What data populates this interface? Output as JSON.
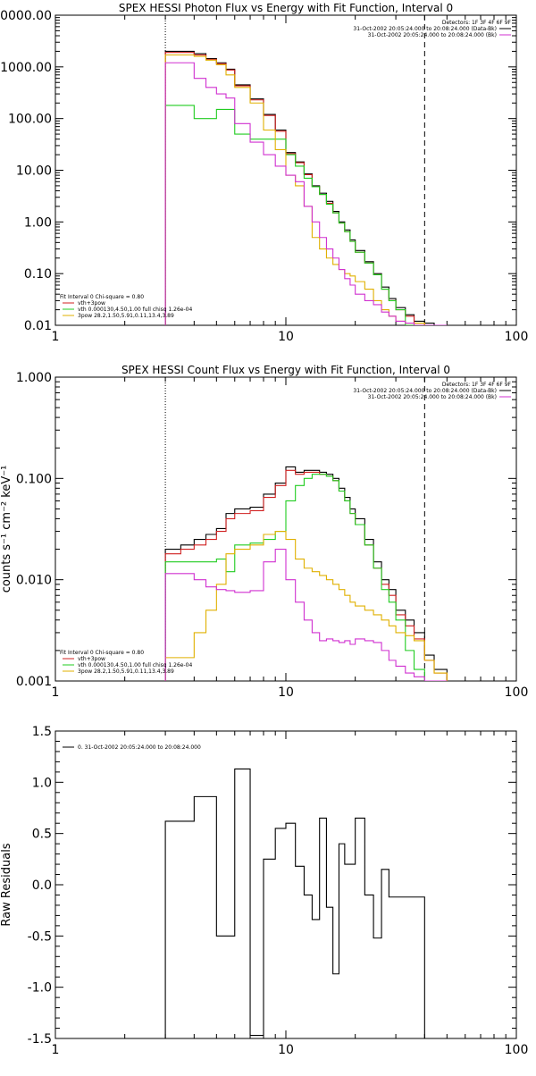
{
  "chart_data": [
    {
      "type": "line",
      "step": true,
      "title": "SPEX HESSI Photon Flux vs Energy with Fit Function, Interval 0",
      "xscale": "log",
      "yscale": "log",
      "xlim": [
        1,
        100
      ],
      "ylim": [
        0.01,
        10000
      ],
      "xticks": [
        {
          "v": 1,
          "label": "1"
        },
        {
          "v": 10,
          "label": "10"
        },
        {
          "v": 100,
          "label": "100"
        }
      ],
      "yticks": [
        {
          "v": 0.01,
          "label": "0.01"
        },
        {
          "v": 0.1,
          "label": "0.10"
        },
        {
          "v": 1,
          "label": "1.00"
        },
        {
          "v": 10,
          "label": "10.00"
        },
        {
          "v": 100,
          "label": "100.00"
        },
        {
          "v": 1000,
          "label": "1000.00"
        },
        {
          "v": 10000,
          "label": "10000.00"
        }
      ],
      "vlines": [
        {
          "x": 3,
          "style": "dotted"
        },
        {
          "x": 40,
          "style": "dashed"
        }
      ],
      "edges": [
        3,
        3.5,
        4,
        4.5,
        5,
        5.5,
        6,
        7,
        8,
        9,
        10,
        11,
        12,
        13,
        14,
        15,
        16,
        17,
        18,
        19,
        20,
        22,
        24,
        26,
        28,
        30,
        33,
        36,
        40,
        44,
        50
      ],
      "series": [
        {
          "color": "#000000",
          "values": [
            2000,
            2000,
            1800,
            1450,
            1200,
            900,
            450,
            240,
            120,
            60,
            22,
            14.5,
            8.5,
            5,
            3.6,
            2.5,
            1.6,
            1.0,
            0.7,
            0.45,
            0.28,
            0.17,
            0.1,
            0.055,
            0.033,
            0.022,
            0.016,
            0.012,
            0.011,
            0.01
          ]
        },
        {
          "color": "#d02020",
          "values": [
            1900,
            1900,
            1700,
            1400,
            1150,
            870,
            430,
            230,
            115,
            57,
            21,
            14,
            8.2,
            4.8,
            3.4,
            2.3,
            1.5,
            0.95,
            0.65,
            0.42,
            0.26,
            0.16,
            0.095,
            0.05,
            0.03,
            0.02,
            0.015,
            0.011,
            0.01,
            0.01
          ]
        },
        {
          "color": "#20cc20",
          "values": [
            180,
            180,
            100,
            100,
            150,
            150,
            50,
            40,
            40,
            40,
            20,
            12,
            7,
            4.8,
            3.4,
            2.2,
            1.5,
            0.95,
            0.65,
            0.42,
            0.26,
            0.16,
            0.095,
            0.05,
            0.03,
            0.02,
            0.01,
            0.01,
            0.01,
            0.01
          ]
        },
        {
          "color": "#e0b000",
          "values": [
            1700,
            1700,
            1600,
            1350,
            1100,
            700,
            400,
            200,
            60,
            25,
            8,
            5,
            2.0,
            0.5,
            0.3,
            0.2,
            0.15,
            0.12,
            0.1,
            0.09,
            0.07,
            0.05,
            0.03,
            0.02,
            0.015,
            0.012,
            0.011,
            0.011,
            0.01,
            0.01
          ]
        },
        {
          "color": "#d030d0",
          "values": [
            1200,
            1200,
            600,
            400,
            300,
            250,
            80,
            35,
            20,
            12,
            8,
            6,
            2.0,
            1.0,
            0.5,
            0.3,
            0.2,
            0.12,
            0.08,
            0.06,
            0.04,
            0.03,
            0.025,
            0.018,
            0.015,
            0.012,
            0.011,
            0.01,
            0.01,
            0.01
          ]
        }
      ],
      "legend_right": {
        "placement": "top-right",
        "lines": [
          {
            "text": "Detectors: 1F 3F 4F 6F 9F",
            "color": null
          },
          {
            "text": "31-Oct-2002 20:05:24.000 to 20:08:24.000 (Data-Bk)",
            "color": "#000000"
          },
          {
            "text": "31-Oct-2002 20:05:24.000 to 20:08:24.000 (Bk)",
            "color": "#d030d0"
          }
        ]
      },
      "legend_left": {
        "placement": "bottom-left",
        "lines": [
          {
            "text": "Fit Interval 0   Chi-square = 0.80",
            "color": null
          },
          {
            "text": "vth+3pow",
            "color": "#d02020"
          },
          {
            "text": "vth 0.000130,4.50,1.00   full chisq 1.26e-04",
            "color": "#20cc20"
          },
          {
            "text": "3pow 28.2,1.50,5.91,0.11,13.4,3.89",
            "color": "#e0b000"
          }
        ]
      }
    },
    {
      "type": "line",
      "step": true,
      "title": "SPEX HESSI Count Flux vs Energy with Fit Function, Interval 0",
      "ylabel": "counts s⁻¹ cm⁻² keV⁻¹",
      "xscale": "log",
      "yscale": "log",
      "xlim": [
        1,
        100
      ],
      "ylim": [
        0.001,
        1
      ],
      "xticks": [
        {
          "v": 1,
          "label": "1"
        },
        {
          "v": 10,
          "label": "10"
        },
        {
          "v": 100,
          "label": "100"
        }
      ],
      "yticks": [
        {
          "v": 0.001,
          "label": "0.001"
        },
        {
          "v": 0.01,
          "label": "0.010"
        },
        {
          "v": 0.1,
          "label": "0.100"
        },
        {
          "v": 1,
          "label": "1.000"
        }
      ],
      "vlines": [
        {
          "x": 3,
          "style": "dotted"
        },
        {
          "x": 40,
          "style": "dashed"
        }
      ],
      "edges": [
        3,
        3.5,
        4,
        4.5,
        5,
        5.5,
        6,
        7,
        8,
        9,
        10,
        11,
        12,
        13,
        14,
        15,
        16,
        17,
        18,
        19,
        20,
        22,
        24,
        26,
        28,
        30,
        33,
        36,
        40,
        44,
        50
      ],
      "series": [
        {
          "color": "#000000",
          "values": [
            0.02,
            0.022,
            0.025,
            0.028,
            0.032,
            0.045,
            0.05,
            0.052,
            0.07,
            0.09,
            0.13,
            0.115,
            0.12,
            0.12,
            0.115,
            0.11,
            0.1,
            0.08,
            0.065,
            0.05,
            0.04,
            0.025,
            0.015,
            0.01,
            0.008,
            0.005,
            0.004,
            0.003,
            0.0018,
            0.0013
          ]
        },
        {
          "color": "#d02020",
          "values": [
            0.018,
            0.02,
            0.022,
            0.025,
            0.03,
            0.04,
            0.045,
            0.048,
            0.065,
            0.085,
            0.12,
            0.11,
            0.115,
            0.115,
            0.11,
            0.105,
            0.095,
            0.075,
            0.06,
            0.045,
            0.035,
            0.022,
            0.013,
            0.009,
            0.007,
            0.0045,
            0.0035,
            0.0026,
            0.0016,
            0.0012
          ]
        },
        {
          "color": "#20cc20",
          "values": [
            0.015,
            0.015,
            0.015,
            0.015,
            0.016,
            0.012,
            0.022,
            0.023,
            0.025,
            0.03,
            0.06,
            0.085,
            0.1,
            0.11,
            0.11,
            0.105,
            0.095,
            0.075,
            0.06,
            0.045,
            0.035,
            0.022,
            0.013,
            0.008,
            0.006,
            0.004,
            0.002,
            0.0013,
            0.001,
            0.001
          ]
        },
        {
          "color": "#e0b000",
          "values": [
            0.0017,
            0.0017,
            0.003,
            0.005,
            0.009,
            0.018,
            0.02,
            0.022,
            0.028,
            0.03,
            0.025,
            0.016,
            0.013,
            0.012,
            0.011,
            0.01,
            0.009,
            0.008,
            0.007,
            0.006,
            0.0055,
            0.005,
            0.0045,
            0.004,
            0.0035,
            0.003,
            0.0028,
            0.0025,
            0.0016,
            0.0012
          ]
        },
        {
          "color": "#d030d0",
          "values": [
            0.0115,
            0.0115,
            0.01,
            0.0085,
            0.008,
            0.0078,
            0.0075,
            0.0078,
            0.015,
            0.02,
            0.01,
            0.006,
            0.004,
            0.003,
            0.0025,
            0.0026,
            0.0025,
            0.0024,
            0.0025,
            0.0023,
            0.0026,
            0.0025,
            0.0024,
            0.002,
            0.0016,
            0.0014,
            0.0012,
            0.0011,
            0.001,
            0.001
          ]
        }
      ],
      "legend_right": {
        "placement": "top-right",
        "lines": [
          {
            "text": "Detectors: 1F 3F 4F 6F 9F",
            "color": null
          },
          {
            "text": "31-Oct-2002 20:05:24.000 to 20:08:24.000 (Data-Bk)",
            "color": "#000000"
          },
          {
            "text": "31-Oct-2002 20:05:24.000 to 20:08:24.000 (Bk)",
            "color": "#d030d0"
          }
        ]
      },
      "legend_left": {
        "placement": "bottom-left",
        "lines": [
          {
            "text": "Fit Interval 0   Chi-square = 0.80",
            "color": null
          },
          {
            "text": "vth+3pow",
            "color": "#d02020"
          },
          {
            "text": "vth 0.000130,4.50,1.00   full chisq 1.26e-04",
            "color": "#20cc20"
          },
          {
            "text": "3pow 28.2,1.50,5.91,0.11,13.4,3.89",
            "color": "#e0b000"
          }
        ]
      }
    },
    {
      "type": "line",
      "step": true,
      "title": "",
      "ylabel": "Raw Residuals",
      "xscale": "log",
      "yscale": "linear",
      "xlim": [
        1,
        100
      ],
      "ylim": [
        -1.5,
        1.5
      ],
      "xticks": [
        {
          "v": 1,
          "label": "1"
        },
        {
          "v": 10,
          "label": "10"
        },
        {
          "v": 100,
          "label": "100"
        }
      ],
      "yticks": [
        {
          "v": -1.5,
          "label": "-1.5"
        },
        {
          "v": -1.0,
          "label": "-1.0"
        },
        {
          "v": -0.5,
          "label": "-0.5"
        },
        {
          "v": 0.0,
          "label": "0.0"
        },
        {
          "v": 0.5,
          "label": "0.5"
        },
        {
          "v": 1.0,
          "label": "1.0"
        },
        {
          "v": 1.5,
          "label": "1.5"
        }
      ],
      "vlines": [],
      "edges": [
        3,
        4,
        5,
        6,
        7,
        8,
        9,
        10,
        11,
        12,
        13,
        14,
        15,
        16,
        17,
        18,
        20,
        22,
        24,
        26,
        28,
        30,
        33,
        36,
        40
      ],
      "closed_to_floor": true,
      "series": [
        {
          "color": "#000000",
          "values": [
            0.62,
            0.86,
            -0.5,
            1.13,
            -1.47,
            0.25,
            0.55,
            0.6,
            0.18,
            -0.1,
            -0.34,
            0.65,
            -0.22,
            -0.87,
            0.4,
            0.2,
            0.65,
            -0.1,
            -0.52,
            0.15,
            -0.12,
            -0.12,
            -0.12,
            -0.12
          ]
        }
      ],
      "legend_left": {
        "placement": "top-left",
        "lines": [
          {
            "text": "0. 31-Oct-2002 20:05:24.000 to 20:08:24.000",
            "color": "#000000"
          }
        ]
      }
    }
  ]
}
